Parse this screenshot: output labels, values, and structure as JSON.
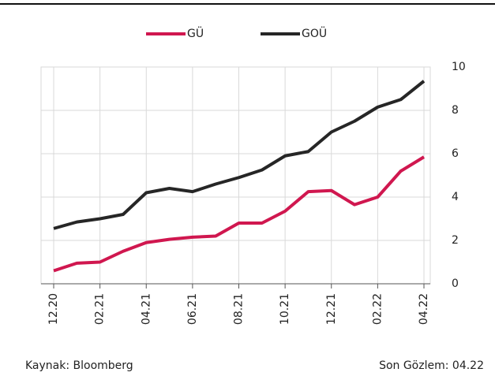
{
  "chart_data": {
    "type": "line",
    "categories": [
      "12.20",
      null,
      "02.21",
      null,
      "04.21",
      null,
      "06.21",
      null,
      "08.21",
      null,
      "10.21",
      null,
      "12.21",
      null,
      "02.22",
      null,
      "04.22"
    ],
    "series": [
      {
        "name": "GÜ",
        "color": "#d0174f",
        "values": [
          0.6,
          0.95,
          1.0,
          1.5,
          1.9,
          2.05,
          2.15,
          2.2,
          2.8,
          2.8,
          3.35,
          4.25,
          4.3,
          3.65,
          4.0,
          5.2,
          5.85
        ]
      },
      {
        "name": "GOÜ",
        "color": "#262626",
        "values": [
          2.55,
          2.85,
          3.0,
          3.2,
          4.2,
          4.4,
          4.25,
          4.6,
          4.9,
          5.25,
          5.9,
          6.1,
          7.0,
          7.5,
          8.15,
          8.5,
          9.35
        ]
      }
    ],
    "ylim": [
      0,
      10
    ],
    "yticks": [
      0,
      2,
      4,
      6,
      8,
      10
    ],
    "grid": true,
    "legend": "top",
    "source": "Kaynak: Bloomberg",
    "last_observation": "Son Gözlem: 04.22"
  }
}
